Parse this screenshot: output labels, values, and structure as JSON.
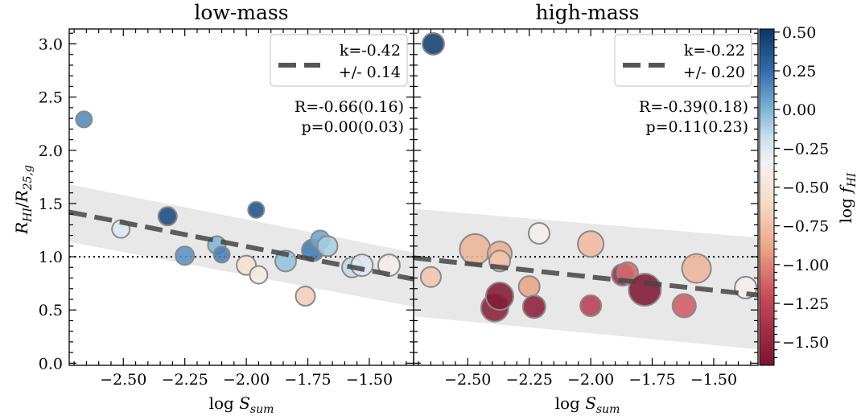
{
  "chart_data": {
    "type": "scatter",
    "ylabel": "R_HI/R_25,g",
    "yticks": [
      0.0,
      0.5,
      1.0,
      1.5,
      2.0,
      2.5,
      3.0
    ],
    "ytick_labels": [
      "0.0",
      "0.5",
      "1.0",
      "1.5",
      "2.0",
      "2.5",
      "3.0"
    ],
    "xticks": [
      -2.5,
      -2.25,
      -2.0,
      -1.75,
      -1.5
    ],
    "xtick_labels": [
      "−2.50",
      "−2.25",
      "−2.00",
      "−1.75",
      "−1.50"
    ],
    "ylim": [
      -0.02,
      3.14
    ],
    "reference_line_y": 1.0,
    "colorbar": {
      "label": "log f_HI",
      "range": [
        -1.65,
        0.52
      ],
      "ticks": [
        0.5,
        0.25,
        0.0,
        -0.25,
        -0.5,
        -0.75,
        -1.0,
        -1.25,
        -1.5
      ],
      "tick_labels": [
        "0.50",
        "0.25",
        "0.00",
        "−0.25",
        "−0.50",
        "−0.75",
        "−1.00",
        "−1.25",
        "−1.50"
      ]
    },
    "panels": [
      {
        "title": "low-mass",
        "xlabel": "log S_sum",
        "xlim": [
          -2.72,
          -1.32
        ],
        "legend_line1": "k=-0.42",
        "legend_line2": "+/- 0.14",
        "stat_R": "R=-0.66(0.16)",
        "stat_p": "p=0.00(0.03)",
        "fit": {
          "x": [
            -2.72,
            -1.32
          ],
          "y": [
            1.42,
            0.79
          ]
        },
        "band_upper": {
          "x": [
            -2.72,
            -1.32
          ],
          "y": [
            1.68,
            1.04
          ]
        },
        "band_lower": {
          "x": [
            -2.72,
            -1.32
          ],
          "y": [
            1.14,
            0.53
          ]
        },
        "points": [
          {
            "x": -2.66,
            "y": 2.29,
            "c": 0.15,
            "s": 1.0
          },
          {
            "x": -2.32,
            "y": 1.38,
            "c": 0.42,
            "s": 1.15
          },
          {
            "x": -2.51,
            "y": 1.26,
            "c": -0.25,
            "s": 1.1
          },
          {
            "x": -1.96,
            "y": 1.44,
            "c": 0.38,
            "s": 1.0
          },
          {
            "x": -2.25,
            "y": 1.01,
            "c": 0.12,
            "s": 1.15
          },
          {
            "x": -2.12,
            "y": 1.11,
            "c": 0.0,
            "s": 1.1
          },
          {
            "x": -2.1,
            "y": 1.02,
            "c": 0.18,
            "s": 1.0
          },
          {
            "x": -2.0,
            "y": 0.92,
            "c": -0.55,
            "s": 1.2
          },
          {
            "x": -1.95,
            "y": 0.83,
            "c": -0.45,
            "s": 1.1
          },
          {
            "x": -1.84,
            "y": 0.96,
            "c": -0.05,
            "s": 1.3
          },
          {
            "x": -1.73,
            "y": 1.06,
            "c": 0.2,
            "s": 1.35
          },
          {
            "x": -1.7,
            "y": 1.16,
            "c": 0.05,
            "s": 1.15
          },
          {
            "x": -1.67,
            "y": 1.1,
            "c": -0.1,
            "s": 1.25
          },
          {
            "x": -1.76,
            "y": 0.63,
            "c": -0.68,
            "s": 1.2
          },
          {
            "x": -1.57,
            "y": 0.9,
            "c": -0.15,
            "s": 1.25
          },
          {
            "x": -1.53,
            "y": 0.92,
            "c": -0.25,
            "s": 1.35
          },
          {
            "x": -1.42,
            "y": 0.92,
            "c": -0.42,
            "s": 1.35
          }
        ]
      },
      {
        "title": "high-mass",
        "xlabel": "log S_sum",
        "xlim": [
          -2.72,
          -1.32
        ],
        "legend_line1": "k=-0.22",
        "legend_line2": "+/- 0.20",
        "stat_R": "R=-0.39(0.18)",
        "stat_p": "p=0.11(0.23)",
        "fit": {
          "x": [
            -2.72,
            -1.32
          ],
          "y": [
            0.99,
            0.64
          ]
        },
        "band_upper": {
          "x": [
            -2.72,
            -1.32
          ],
          "y": [
            1.45,
            1.18
          ]
        },
        "band_lower": {
          "x": [
            -2.72,
            -1.32
          ],
          "y": [
            0.44,
            0.13
          ]
        },
        "points": [
          {
            "x": -2.64,
            "y": 3.0,
            "c": 0.48,
            "s": 1.35
          },
          {
            "x": -2.65,
            "y": 0.81,
            "c": -0.72,
            "s": 1.25
          },
          {
            "x": -2.47,
            "y": 1.07,
            "c": -0.82,
            "s": 1.9
          },
          {
            "x": -2.37,
            "y": 1.03,
            "c": -0.85,
            "s": 1.5
          },
          {
            "x": -2.37,
            "y": 0.96,
            "c": -0.72,
            "s": 1.3
          },
          {
            "x": -2.39,
            "y": 0.52,
            "c": -1.55,
            "s": 1.7
          },
          {
            "x": -2.37,
            "y": 0.63,
            "c": -1.6,
            "s": 1.7
          },
          {
            "x": -2.25,
            "y": 0.72,
            "c": -0.9,
            "s": 1.3
          },
          {
            "x": -2.23,
            "y": 0.53,
            "c": -1.55,
            "s": 1.4
          },
          {
            "x": -2.21,
            "y": 1.22,
            "c": -0.4,
            "s": 1.3
          },
          {
            "x": -2.0,
            "y": 1.12,
            "c": -0.78,
            "s": 1.6
          },
          {
            "x": -2.0,
            "y": 0.54,
            "c": -1.3,
            "s": 1.3
          },
          {
            "x": -1.87,
            "y": 0.83,
            "c": -1.45,
            "s": 1.35
          },
          {
            "x": -1.85,
            "y": 0.85,
            "c": -1.1,
            "s": 1.3
          },
          {
            "x": -1.78,
            "y": 0.69,
            "c": -1.62,
            "s": 2.0
          },
          {
            "x": -1.62,
            "y": 0.54,
            "c": -1.15,
            "s": 1.45
          },
          {
            "x": -1.57,
            "y": 0.89,
            "c": -0.82,
            "s": 1.8
          },
          {
            "x": -1.37,
            "y": 0.71,
            "c": -0.4,
            "s": 1.35
          }
        ]
      }
    ]
  }
}
